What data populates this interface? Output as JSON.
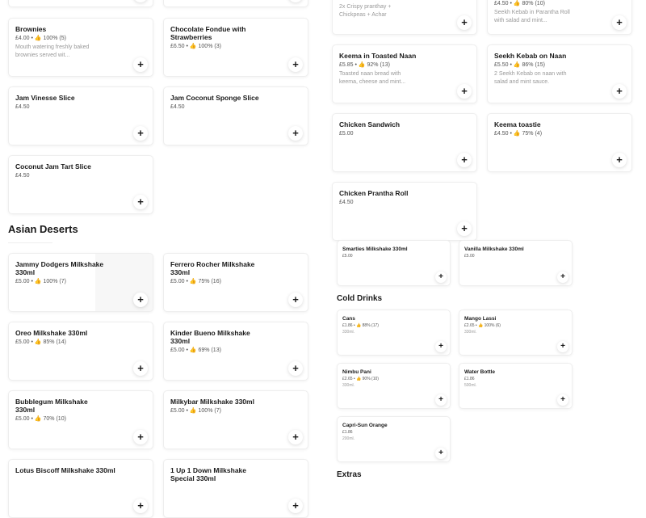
{
  "left": {
    "cards_top": [
      {
        "name": "",
        "meta": "",
        "desc": ""
      },
      {
        "name": "",
        "meta": "",
        "desc": ""
      },
      {
        "name": "Brownies",
        "meta": "£4.00 • 👍 100% (5)",
        "desc": "Mouth watering freshly baked brownies served wit..."
      },
      {
        "name": "Chocolate Fondue with Strawberries",
        "meta": "£6.50 • 👍 100% (3)",
        "desc": ""
      },
      {
        "name": "Jam Vinesse Slice",
        "meta": "£4.50",
        "desc": ""
      },
      {
        "name": "Jam Coconut Sponge Slice",
        "meta": "£4.50",
        "desc": ""
      },
      {
        "name": "Coconut Jam Tart Slice",
        "meta": "£4.50",
        "desc": ""
      }
    ],
    "section_title": "Asian Deserts",
    "cards_bottom": [
      {
        "name": "Jammy Dodgers Milkshake 330ml",
        "meta": "£5.00 • 👍 100% (7)",
        "desc": ""
      },
      {
        "name": "Ferrero Rocher Milkshake 330ml",
        "meta": "£5.00 • 👍 75% (16)",
        "desc": ""
      },
      {
        "name": "Oreo Milkshake 330ml",
        "meta": "£5.00 • 👍 85% (14)",
        "desc": ""
      },
      {
        "name": "Kinder Bueno Milkshake 330ml",
        "meta": "£5.00 • 👍 69% (13)",
        "desc": ""
      },
      {
        "name": "Bubblegum Milkshake 330ml",
        "meta": "£5.00 • 👍 70% (10)",
        "desc": ""
      },
      {
        "name": "Milkybar Milkshake 330ml",
        "meta": "£5.00 • 👍 100% (7)",
        "desc": ""
      },
      {
        "name": "Lotus Biscoff Milkshake 330ml",
        "meta": "",
        "desc": ""
      },
      {
        "name": "1 Up 1 Down Milkshake Special 330ml",
        "meta": "",
        "desc": ""
      }
    ]
  },
  "right_top": {
    "cards": [
      {
        "name": "",
        "meta": "",
        "desc": "2x Crispy pranthay + Chickpeas + Achar"
      },
      {
        "name": "",
        "meta": "£4.50 • 👍 80% (10)",
        "desc": "Seekh Kebab in Parantha Roll with salad and mint..."
      },
      {
        "name": "Keema in Toasted Naan",
        "meta": "£5.85 • 👍 92% (13)",
        "desc": "Toasted naan bread with keema, cheese and mint..."
      },
      {
        "name": "Seekh Kebab on Naan",
        "meta": "£5.50 • 👍 86% (15)",
        "desc": "2 Seekh Kebab on naan with salad and mint sauce."
      },
      {
        "name": "Chicken Sandwich",
        "meta": "£5.00",
        "desc": ""
      },
      {
        "name": "Keema toastie",
        "meta": "£4.50 • 👍 75% (4)",
        "desc": ""
      },
      {
        "name": "Chicken Prantha Roll",
        "meta": "£4.50",
        "desc": ""
      }
    ]
  },
  "right_bottom": {
    "cards_top": [
      {
        "name": "Smarties Milkshake 330ml",
        "meta": "£5.00",
        "desc": ""
      },
      {
        "name": "Vanilla Milkshake 330ml",
        "meta": "£5.00",
        "desc": ""
      }
    ],
    "section_title": "Cold Drinks",
    "cards": [
      {
        "name": "Cans",
        "meta": "£1.86 • 👍 88% (17)",
        "desc": "330ml."
      },
      {
        "name": "Mango Lassi",
        "meta": "£2.65 • 👍 100% (6)",
        "desc": "330ml."
      },
      {
        "name": "Nimbu Pani",
        "meta": "£2.65 • 👍 90% (10)",
        "desc": "330ml."
      },
      {
        "name": "Water Bottle",
        "meta": "£1.86",
        "desc": "500ml."
      },
      {
        "name": "Capri-Sun Orange",
        "meta": "£1.86",
        "desc": "200ml."
      }
    ],
    "extras_title": "Extras"
  },
  "add_label": "+"
}
